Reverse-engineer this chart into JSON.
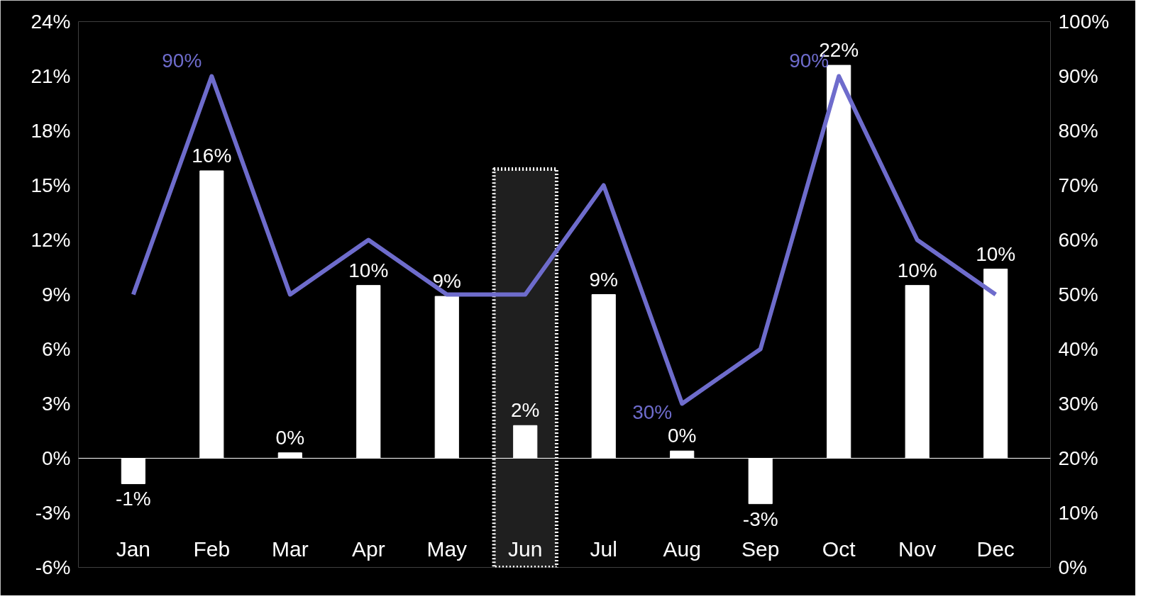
{
  "chart_data": {
    "type": "bar",
    "categories": [
      "Jan",
      "Feb",
      "Mar",
      "Apr",
      "May",
      "Jun",
      "Jul",
      "Aug",
      "Sep",
      "Oct",
      "Nov",
      "Dec"
    ],
    "series": [
      {
        "color": "#ffffff",
        "values": [
          -1.4,
          15.8,
          0.3,
          9.5,
          8.9,
          1.8,
          9.0,
          0.4,
          -2.5,
          21.6,
          9.5,
          10.4
        ],
        "value_labels": [
          "-1%",
          "16%",
          "0%",
          "10%",
          "9%",
          "2%",
          "9%",
          "0%",
          "-3%",
          "22%",
          "10%",
          "10%"
        ]
      },
      {
        "type": "line",
        "axis": "y2",
        "color": "#6e6ccc",
        "values": [
          50,
          90,
          50,
          60,
          50,
          50,
          70,
          30,
          40,
          90,
          60,
          50
        ],
        "value_labels": [
          null,
          "90%",
          null,
          null,
          null,
          null,
          null,
          "30%",
          null,
          "90%",
          null,
          null
        ]
      }
    ],
    "ylim": [
      -6,
      24
    ],
    "yticks": [
      {
        "value": -6,
        "label": "-6%"
      },
      {
        "value": -3,
        "label": "-3%"
      },
      {
        "value": 0,
        "label": "0%"
      },
      {
        "value": 3,
        "label": "3%"
      },
      {
        "value": 6,
        "label": "6%"
      },
      {
        "value": 9,
        "label": "9%"
      },
      {
        "value": 12,
        "label": "12%"
      },
      {
        "value": 15,
        "label": "15%"
      },
      {
        "value": 18,
        "label": "18%"
      },
      {
        "value": 21,
        "label": "21%"
      },
      {
        "value": 24,
        "label": "24%"
      }
    ],
    "y2lim": [
      0,
      100
    ],
    "y2ticks": [
      {
        "value": 0,
        "label": "0%"
      },
      {
        "value": 10,
        "label": "10%"
      },
      {
        "value": 20,
        "label": "20%"
      },
      {
        "value": 30,
        "label": "30%"
      },
      {
        "value": 40,
        "label": "40%"
      },
      {
        "value": 50,
        "label": "50%"
      },
      {
        "value": 60,
        "label": "60%"
      },
      {
        "value": 70,
        "label": "70%"
      },
      {
        "value": 80,
        "label": "80%"
      },
      {
        "value": 90,
        "label": "90%"
      },
      {
        "value": 100,
        "label": "100%"
      }
    ],
    "bands": [
      {
        "axis": "x",
        "from": "Jun",
        "to": "Jun",
        "color": "#ffffff"
      }
    ]
  }
}
